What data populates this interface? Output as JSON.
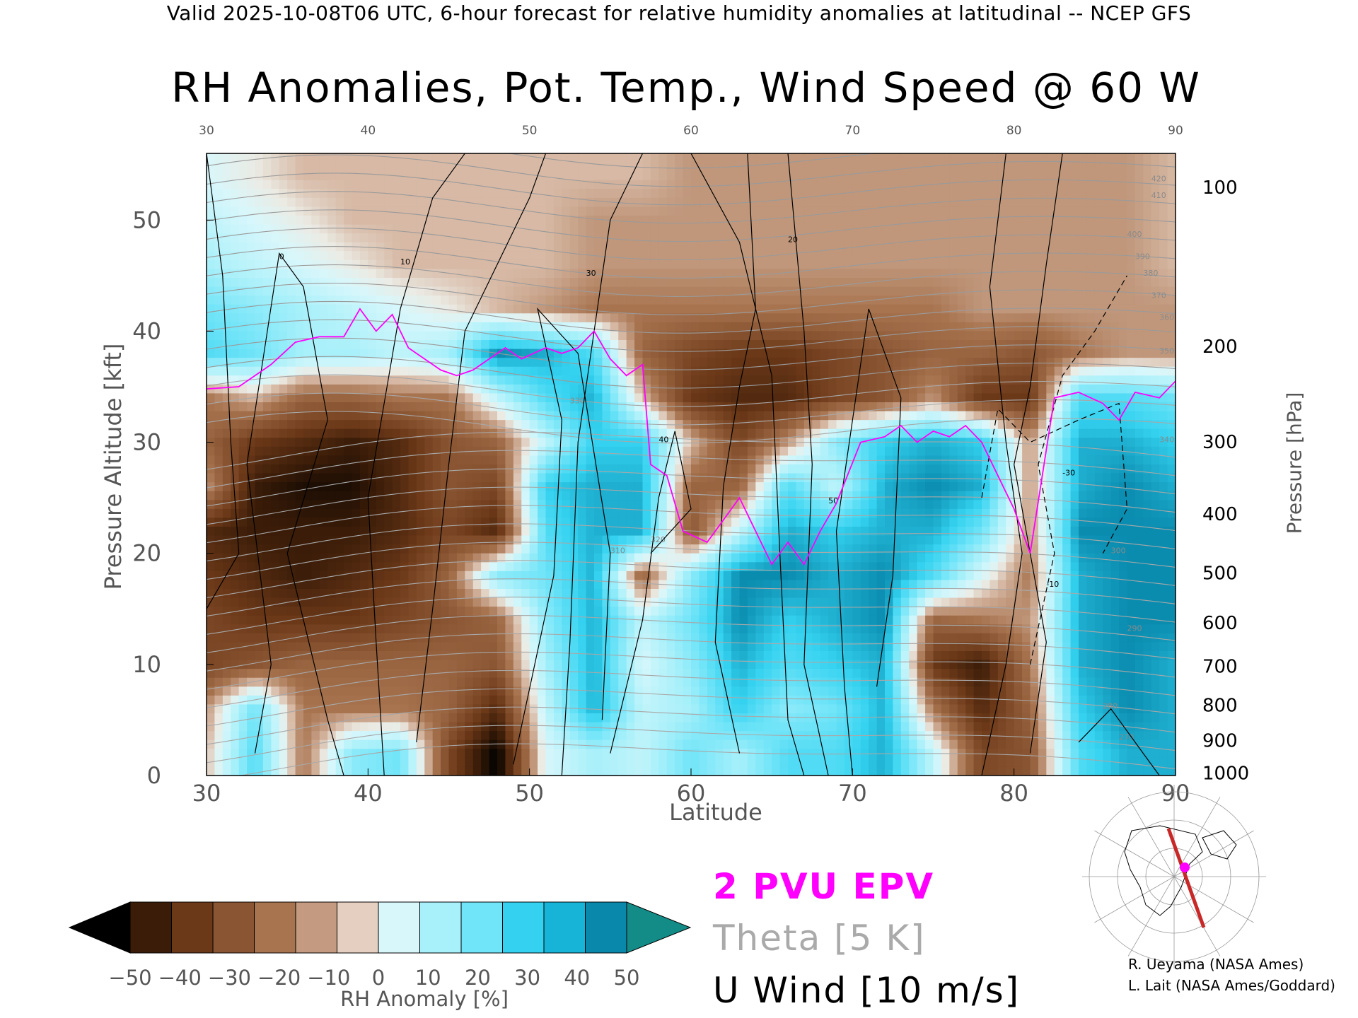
{
  "header": {
    "valid_line": "Valid 2025-10-08T06 UTC, 6-hour forecast for relative humidity anomalies at latitudinal -- NCEP GFS",
    "title": "RH Anomalies, Pot. Temp., Wind Speed @ 60 W"
  },
  "chart_data": {
    "type": "heatmap",
    "title": "RH Anomalies, Pot. Temp., Wind Speed @ 60 W",
    "xlabel": "Latitude",
    "ylabel_left": "Pressure Altitude [kft]",
    "ylabel_right": "Pressure [hPa]",
    "xlim": [
      30,
      90
    ],
    "ylim": [
      0,
      56
    ],
    "x_ticks": [
      "30",
      "40",
      "50",
      "60",
      "70",
      "80",
      "90"
    ],
    "y_ticks": [
      "0",
      "10",
      "20",
      "30",
      "40",
      "50"
    ],
    "pressure_ticks": [
      {
        "label": "100",
        "kft": 53
      },
      {
        "label": "200",
        "kft": 38.7
      },
      {
        "label": "300",
        "kft": 30.1
      },
      {
        "label": "400",
        "kft": 23.6
      },
      {
        "label": "500",
        "kft": 18.3
      },
      {
        "label": "600",
        "kft": 13.8
      },
      {
        "label": "700",
        "kft": 9.9
      },
      {
        "label": "800",
        "kft": 6.4
      },
      {
        "label": "900",
        "kft": 3.2
      },
      {
        "label": "1000",
        "kft": 0.3
      }
    ],
    "theta_labels": [
      "270",
      "280",
      "290",
      "300",
      "310",
      "320",
      "330",
      "340",
      "350",
      "360",
      "370",
      "380",
      "390",
      "400",
      "410",
      "420"
    ],
    "wind_labels": [
      "0",
      "10",
      "20",
      "30",
      "40",
      "50",
      "-10",
      "-30"
    ],
    "rh_anomaly_grid": {
      "lat": [
        30,
        33,
        36,
        39,
        42,
        45,
        48,
        51,
        54,
        57,
        60,
        63,
        66,
        69,
        72,
        75,
        78,
        81,
        84,
        87,
        90
      ],
      "kft": [
        2,
        6,
        10,
        14,
        18,
        22,
        26,
        30,
        34,
        38,
        42,
        46,
        50,
        54
      ],
      "values": [
        [
          -5,
          30,
          -15,
          20,
          25,
          -30,
          -55,
          5,
          15,
          10,
          25,
          15,
          30,
          30,
          40,
          10,
          -30,
          -25,
          30,
          40,
          40
        ],
        [
          -10,
          25,
          -15,
          -15,
          -15,
          -20,
          -40,
          10,
          40,
          10,
          15,
          35,
          20,
          25,
          40,
          -15,
          -40,
          -20,
          35,
          45,
          40
        ],
        [
          -30,
          -25,
          -20,
          -20,
          -20,
          -20,
          -25,
          15,
          40,
          5,
          20,
          40,
          30,
          35,
          40,
          -35,
          -45,
          -15,
          40,
          45,
          40
        ],
        [
          -30,
          -35,
          -35,
          -35,
          -30,
          -25,
          -20,
          20,
          40,
          10,
          25,
          45,
          35,
          40,
          45,
          -20,
          -15,
          -10,
          40,
          45,
          45
        ],
        [
          -35,
          -40,
          -45,
          -40,
          -35,
          -20,
          20,
          25,
          40,
          -20,
          20,
          45,
          45,
          40,
          45,
          30,
          5,
          -15,
          40,
          45,
          45
        ],
        [
          -40,
          -45,
          -45,
          -45,
          -40,
          -30,
          -40,
          30,
          40,
          40,
          -25,
          10,
          40,
          35,
          40,
          40,
          25,
          -10,
          45,
          45,
          45
        ],
        [
          -10,
          -45,
          -50,
          -50,
          -40,
          -25,
          -30,
          35,
          40,
          40,
          -20,
          -20,
          30,
          10,
          40,
          45,
          40,
          -10,
          40,
          45,
          40
        ],
        [
          -20,
          -35,
          -40,
          -45,
          -40,
          -25,
          -20,
          10,
          35,
          35,
          -5,
          -30,
          -10,
          20,
          35,
          40,
          35,
          -10,
          40,
          40,
          35
        ],
        [
          -15,
          -5,
          -20,
          -20,
          -15,
          -15,
          10,
          30,
          40,
          -5,
          -35,
          -40,
          -40,
          -30,
          -25,
          -10,
          -35,
          -35,
          30,
          30,
          25
        ],
        [
          30,
          25,
          15,
          15,
          10,
          15,
          45,
          40,
          30,
          -20,
          -30,
          -35,
          -35,
          -30,
          -25,
          -20,
          -20,
          -25,
          -15,
          -10,
          -10
        ],
        [
          25,
          20,
          15,
          10,
          5,
          0,
          -5,
          -10,
          -15,
          -15,
          -15,
          -15,
          -15,
          -15,
          -15,
          -15,
          -10,
          -10,
          -10,
          -10,
          -10
        ],
        [
          15,
          10,
          5,
          0,
          -5,
          -5,
          -5,
          -5,
          -10,
          -10,
          -10,
          -10,
          -10,
          -10,
          -10,
          -10,
          -10,
          -10,
          -10,
          -10,
          -5
        ],
        [
          10,
          5,
          0,
          -5,
          -5,
          -5,
          -5,
          -5,
          -10,
          -10,
          -10,
          -10,
          -10,
          -10,
          -10,
          -10,
          -10,
          -10,
          -10,
          -10,
          -5
        ],
        [
          5,
          0,
          -5,
          -5,
          -5,
          -5,
          -5,
          -5,
          -5,
          -5,
          -10,
          -10,
          -10,
          -10,
          -10,
          -10,
          -10,
          -10,
          -10,
          -10,
          -5
        ]
      ]
    },
    "epv_2pvu_line": [
      [
        30,
        34.8
      ],
      [
        32,
        35
      ],
      [
        34,
        37
      ],
      [
        35.5,
        39
      ],
      [
        37,
        39.5
      ],
      [
        38.5,
        39.5
      ],
      [
        39.5,
        42
      ],
      [
        40.5,
        40
      ],
      [
        41.5,
        41.5
      ],
      [
        42.5,
        38.5
      ],
      [
        43.5,
        37.5
      ],
      [
        44.5,
        36.5
      ],
      [
        45.5,
        36
      ],
      [
        46.5,
        36.5
      ],
      [
        47.5,
        37.5
      ],
      [
        48.5,
        38.5
      ],
      [
        49.5,
        37.5
      ],
      [
        51,
        38.5
      ],
      [
        52,
        38
      ],
      [
        53,
        38.5
      ],
      [
        54,
        40
      ],
      [
        55,
        37.5
      ],
      [
        56,
        36
      ],
      [
        57,
        37
      ],
      [
        57.5,
        28
      ],
      [
        58.5,
        27
      ],
      [
        59.5,
        22
      ],
      [
        61,
        21
      ],
      [
        62,
        23
      ],
      [
        63,
        25
      ],
      [
        64,
        22
      ],
      [
        65,
        19
      ],
      [
        66,
        21
      ],
      [
        67,
        19
      ],
      [
        68,
        22
      ],
      [
        69,
        24.5
      ],
      [
        70.5,
        30
      ],
      [
        72,
        30.5
      ],
      [
        73,
        31.5
      ],
      [
        74,
        30
      ],
      [
        75,
        31
      ],
      [
        76,
        30.5
      ],
      [
        77,
        31.5
      ],
      [
        78,
        30
      ],
      [
        79,
        27
      ],
      [
        80,
        24
      ],
      [
        81,
        20
      ],
      [
        82.5,
        34
      ],
      [
        84,
        34.5
      ],
      [
        85.5,
        33.5
      ],
      [
        86.5,
        32
      ],
      [
        87.5,
        34.5
      ],
      [
        89,
        34
      ],
      [
        90,
        35.5
      ]
    ],
    "series": [
      {
        "name": "2 PVU EPV"
      },
      {
        "name": "Theta [5 K]"
      },
      {
        "name": "U Wind [10 m/s]"
      }
    ],
    "colorbar": {
      "label": "RH Anomaly [%]",
      "ticks": [
        "−50",
        "−40",
        "−30",
        "−20",
        "−10",
        "0",
        "10",
        "20",
        "30",
        "40",
        "50"
      ],
      "colors": [
        "#000000",
        "#3a1c08",
        "#6b3818",
        "#8a5532",
        "#a87450",
        "#c49a80",
        "#e5cfc0",
        "#d8f7fb",
        "#a8f0fa",
        "#70e4f8",
        "#34d2f0",
        "#17b4d8",
        "#0a88ab",
        "#138b87"
      ]
    },
    "grid": false
  },
  "legend": {
    "epv": "2 PVU EPV",
    "theta": "Theta [5 K]",
    "wind": "U Wind [10 m/s]",
    "colors": {
      "epv": "#ff00ff",
      "theta": "#aaaaaa",
      "wind": "#000000"
    }
  },
  "credits": {
    "line1": "R. Ueyama (NASA Ames)",
    "line2": "L. Lait (NASA Ames/Goddard)"
  }
}
